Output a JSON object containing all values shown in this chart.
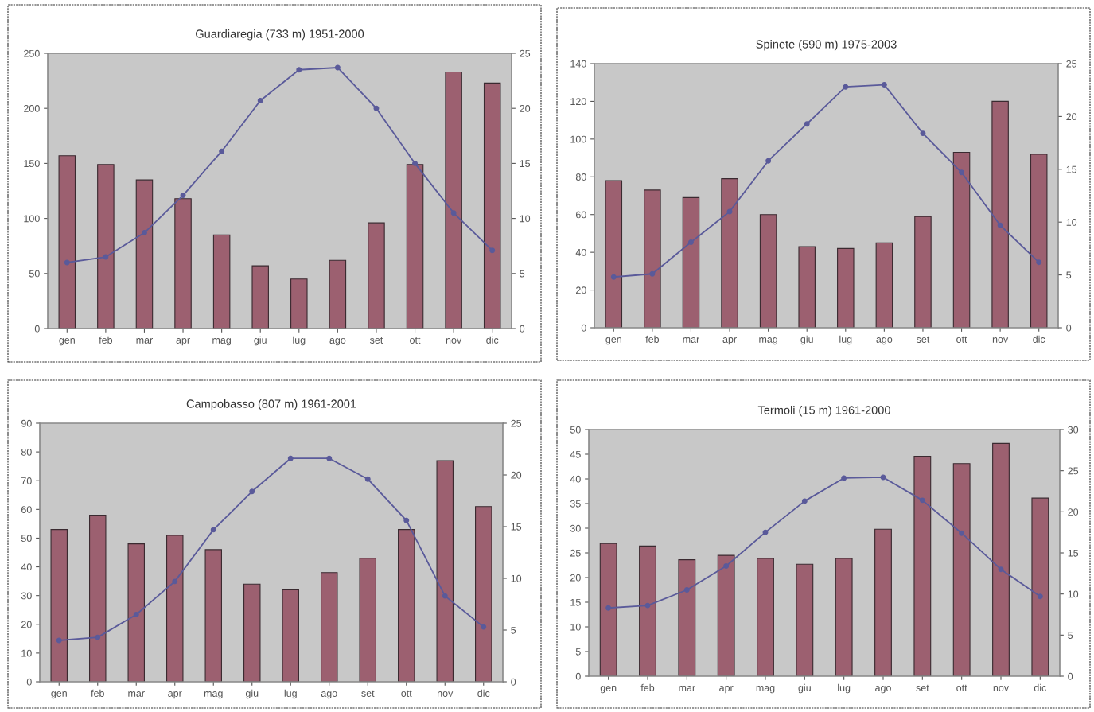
{
  "chart_data": [
    {
      "type": "bar",
      "title": "Guardiaregia (733 m) 1951-2000",
      "categories": [
        "gen",
        "feb",
        "mar",
        "apr",
        "mag",
        "giu",
        "lug",
        "ago",
        "set",
        "ott",
        "nov",
        "dic"
      ],
      "series": [
        {
          "color": "#9c6070",
          "values": [
            157,
            149,
            135,
            118,
            85,
            57,
            45,
            62,
            96,
            149,
            233,
            223
          ]
        },
        {
          "type": "line",
          "axis": "y2",
          "color": "#5a5a9a",
          "values": [
            6.0,
            6.5,
            8.7,
            12.1,
            16.1,
            20.7,
            23.5,
            23.7,
            20.0,
            15.0,
            10.5,
            7.1
          ]
        }
      ],
      "ylim": [
        0,
        250
      ],
      "yticks": [
        0,
        50,
        100,
        150,
        200,
        250
      ],
      "y2lim": [
        0,
        25
      ],
      "y2ticks": [
        0,
        5,
        10,
        15,
        20,
        25
      ],
      "marker": "circle",
      "line_style": "solid"
    },
    {
      "type": "bar",
      "title": "Spinete (590 m) 1975-2003",
      "categories": [
        "gen",
        "feb",
        "mar",
        "apr",
        "mag",
        "giu",
        "lug",
        "ago",
        "set",
        "ott",
        "nov",
        "dic"
      ],
      "series": [
        {
          "color": "#9c6070",
          "values": [
            78,
            73,
            69,
            79,
            60,
            43,
            42,
            45,
            59,
            93,
            120,
            92
          ]
        },
        {
          "type": "line",
          "axis": "y2",
          "color": "#5a5a9a",
          "values": [
            4.8,
            5.1,
            8.1,
            11.0,
            15.8,
            19.3,
            22.8,
            23.0,
            18.4,
            14.7,
            9.7,
            6.2
          ]
        }
      ],
      "ylim": [
        0,
        140
      ],
      "yticks": [
        0,
        20,
        40,
        60,
        80,
        100,
        120,
        140
      ],
      "y2lim": [
        0,
        25
      ],
      "y2ticks": [
        0,
        5,
        10,
        15,
        20,
        25
      ],
      "marker": "circle",
      "line_style": "solid"
    },
    {
      "type": "bar",
      "title": "Campobasso (807 m) 1961-2001",
      "categories": [
        "gen",
        "feb",
        "mar",
        "apr",
        "mag",
        "giu",
        "lug",
        "ago",
        "set",
        "ott",
        "nov",
        "dic"
      ],
      "series": [
        {
          "color": "#9c6070",
          "values": [
            53,
            58,
            48,
            51,
            46,
            34,
            32,
            38,
            43,
            53,
            77,
            61
          ]
        },
        {
          "type": "line",
          "axis": "y2",
          "color": "#5a5a9a",
          "values": [
            4.0,
            4.3,
            6.5,
            9.7,
            14.7,
            18.4,
            21.6,
            21.6,
            19.6,
            15.6,
            8.3,
            5.3
          ]
        }
      ],
      "ylim": [
        0,
        90
      ],
      "yticks": [
        0,
        10,
        20,
        30,
        40,
        50,
        60,
        70,
        80,
        90
      ],
      "y2lim": [
        0,
        25
      ],
      "y2ticks": [
        0,
        5,
        10,
        15,
        20,
        25
      ],
      "marker": "circle",
      "line_style": "solid"
    },
    {
      "type": "bar",
      "title": "Termoli (15 m) 1961-2000",
      "categories": [
        "gen",
        "feb",
        "mar",
        "apr",
        "mag",
        "giu",
        "lug",
        "ago",
        "set",
        "ott",
        "nov",
        "dic"
      ],
      "series": [
        {
          "color": "#9c6070",
          "values": [
            26.9,
            26.4,
            23.6,
            24.5,
            23.9,
            22.7,
            23.9,
            29.8,
            44.6,
            43.1,
            47.2,
            36.1
          ]
        },
        {
          "type": "line",
          "axis": "y2",
          "color": "#5a5a9a",
          "values": [
            8.3,
            8.6,
            10.5,
            13.4,
            17.5,
            21.3,
            24.1,
            24.2,
            21.4,
            17.4,
            13.0,
            9.7
          ]
        }
      ],
      "ylim": [
        0,
        50
      ],
      "yticks": [
        0,
        5,
        10,
        15,
        20,
        25,
        30,
        35,
        40,
        45,
        50
      ],
      "y2lim": [
        0,
        30
      ],
      "y2ticks": [
        0,
        5,
        10,
        15,
        20,
        25,
        30
      ],
      "marker": "circle",
      "line_style": "solid"
    }
  ]
}
